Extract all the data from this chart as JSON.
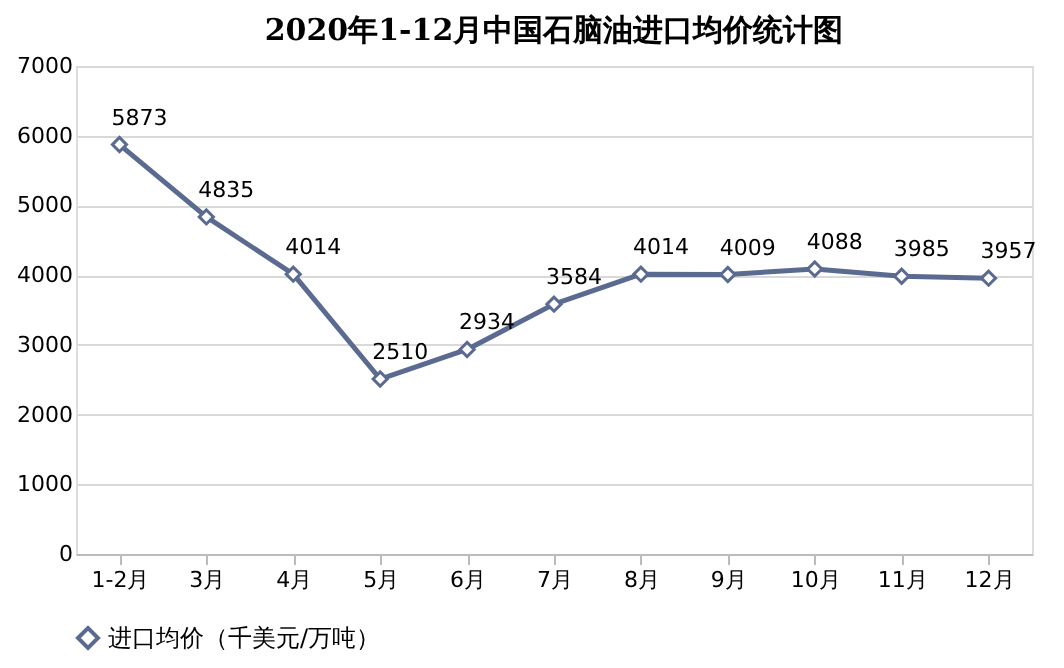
{
  "chart_data": {
    "type": "line",
    "title": "2020年1-12月中国石脑油进口均价统计图",
    "categories": [
      "1-2月",
      "3月",
      "4月",
      "5月",
      "6月",
      "7月",
      "8月",
      "9月",
      "10月",
      "11月",
      "12月"
    ],
    "series": [
      {
        "name": "进口均价（千美元/万吨）",
        "color": "#5b6a90",
        "values": [
          5873,
          4835,
          4014,
          2510,
          2934,
          3584,
          4014,
          4009,
          4088,
          3985,
          3957
        ]
      }
    ],
    "ylim": [
      0,
      7000
    ],
    "yticks": [
      0,
      1000,
      2000,
      3000,
      4000,
      5000,
      6000,
      7000
    ],
    "grid": "y",
    "legend": "bottom",
    "marker": "diamond",
    "line_style": "solid",
    "data_labels": true
  }
}
